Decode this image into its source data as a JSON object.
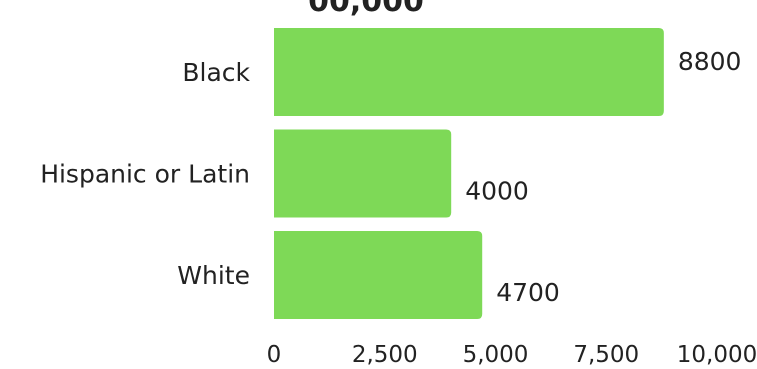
{
  "chart_data": {
    "type": "bar",
    "orientation": "horizontal",
    "title_fragment": "00,000",
    "categories": [
      "Black",
      "Hispanic or Latin",
      "White"
    ],
    "values": [
      8800,
      4000,
      4700
    ],
    "value_labels": [
      "8800",
      "4000",
      "4700"
    ],
    "xlim": [
      0,
      10000
    ],
    "x_ticks": [
      0,
      2500,
      5000,
      7500,
      10000
    ],
    "x_tick_labels": [
      "0",
      "2,500",
      "5,000",
      "7,500",
      "10,000"
    ],
    "grid": false,
    "legend": "none",
    "bar_color": "#7ed957",
    "text_color": "#222222"
  }
}
